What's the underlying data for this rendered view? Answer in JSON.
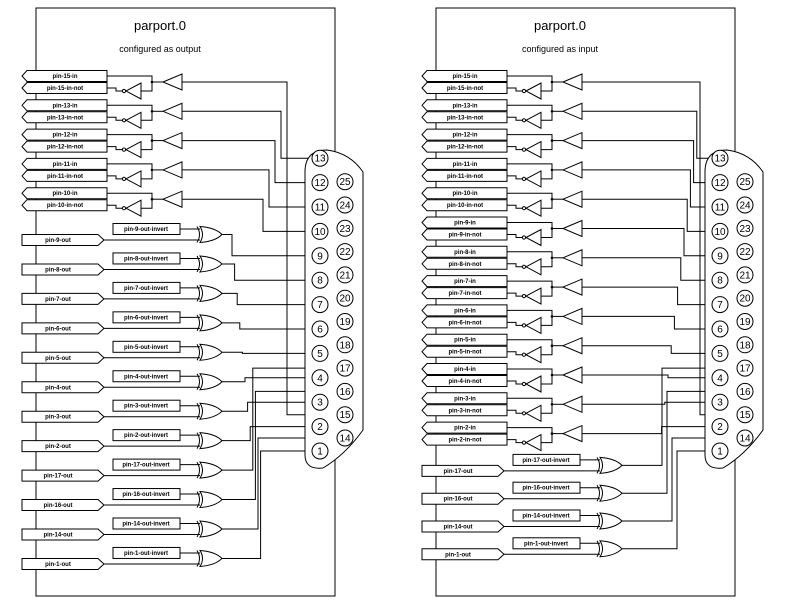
{
  "panels": [
    {
      "title": "parport.0",
      "subtitle": "configured as output",
      "inputs": [
        {
          "pin": 15,
          "in": "pin-15-in",
          "not": "pin-15-in-not"
        },
        {
          "pin": 13,
          "in": "pin-13-in",
          "not": "pin-13-in-not"
        },
        {
          "pin": 12,
          "in": "pin-12-in",
          "not": "pin-12-in-not"
        },
        {
          "pin": 11,
          "in": "pin-11-in",
          "not": "pin-11-in-not"
        },
        {
          "pin": 10,
          "in": "pin-10-in",
          "not": "pin-10-in-not"
        }
      ],
      "outputs": [
        {
          "pin": 9,
          "out": "pin-9-out",
          "invert": "pin-9-out-invert"
        },
        {
          "pin": 8,
          "out": "pin-8-out",
          "invert": "pin-8-out-invert"
        },
        {
          "pin": 7,
          "out": "pin-7-out",
          "invert": "pin-7-out-invert"
        },
        {
          "pin": 6,
          "out": "pin-6-out",
          "invert": "pin-6-out-invert"
        },
        {
          "pin": 5,
          "out": "pin-5-out",
          "invert": "pin-5-out-invert"
        },
        {
          "pin": 4,
          "out": "pin-4-out",
          "invert": "pin-4-out-invert"
        },
        {
          "pin": 3,
          "out": "pin-3-out",
          "invert": "pin-3-out-invert"
        },
        {
          "pin": 2,
          "out": "pin-2-out",
          "invert": "pin-2-out-invert"
        },
        {
          "pin": 17,
          "out": "pin-17-out",
          "invert": "pin-17-out-invert"
        },
        {
          "pin": 16,
          "out": "pin-16-out",
          "invert": "pin-16-out-invert"
        },
        {
          "pin": 14,
          "out": "pin-14-out",
          "invert": "pin-14-out-invert"
        },
        {
          "pin": 1,
          "out": "pin-1-out",
          "invert": "pin-1-out-invert"
        }
      ]
    },
    {
      "title": "parport.0",
      "subtitle": "configured as input",
      "inputs": [
        {
          "pin": 15,
          "in": "pin-15-in",
          "not": "pin-15-in-not"
        },
        {
          "pin": 13,
          "in": "pin-13-in",
          "not": "pin-13-in-not"
        },
        {
          "pin": 12,
          "in": "pin-12-in",
          "not": "pin-12-in-not"
        },
        {
          "pin": 11,
          "in": "pin-11-in",
          "not": "pin-11-in-not"
        },
        {
          "pin": 10,
          "in": "pin-10-in",
          "not": "pin-10-in-not"
        },
        {
          "pin": 9,
          "in": "pin-9-in",
          "not": "pin-9-in-not"
        },
        {
          "pin": 8,
          "in": "pin-8-in",
          "not": "pin-8-in-not"
        },
        {
          "pin": 7,
          "in": "pin-7-in",
          "not": "pin-7-in-not"
        },
        {
          "pin": 6,
          "in": "pin-6-in",
          "not": "pin-6-in-not"
        },
        {
          "pin": 5,
          "in": "pin-5-in",
          "not": "pin-5-in-not"
        },
        {
          "pin": 4,
          "in": "pin-4-in",
          "not": "pin-4-in-not"
        },
        {
          "pin": 3,
          "in": "pin-3-in",
          "not": "pin-3-in-not"
        },
        {
          "pin": 2,
          "in": "pin-2-in",
          "not": "pin-2-in-not"
        }
      ],
      "outputs": [
        {
          "pin": 17,
          "out": "pin-17-out",
          "invert": "pin-17-out-invert"
        },
        {
          "pin": 16,
          "out": "pin-16-out",
          "invert": "pin-16-out-invert"
        },
        {
          "pin": 14,
          "out": "pin-14-out",
          "invert": "pin-14-out-invert"
        },
        {
          "pin": 1,
          "out": "pin-1-out",
          "invert": "pin-1-out-invert"
        }
      ]
    }
  ],
  "connector": {
    "top_row": [
      1,
      2,
      3,
      4,
      5,
      6,
      7,
      8,
      9,
      10,
      11,
      12,
      13
    ],
    "bottom_row": [
      14,
      15,
      16,
      17,
      18,
      19,
      20,
      21,
      22,
      23,
      24,
      25
    ]
  }
}
